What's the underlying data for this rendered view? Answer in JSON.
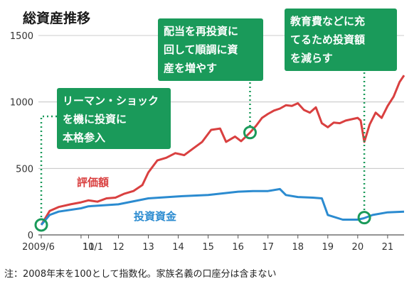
{
  "chart_data": {
    "type": "line",
    "title": "総資産推移",
    "ylim": [
      0,
      1500
    ],
    "y_ticks": [
      0,
      500,
      1000,
      1500
    ],
    "x_ticks": [
      {
        "t": 2009.42,
        "label": "2009/6"
      },
      {
        "t": 2010.75,
        "label": "10/1"
      },
      {
        "t": 2011.0,
        "label": "11"
      },
      {
        "t": 2012.0,
        "label": "12"
      },
      {
        "t": 2013.0,
        "label": "13"
      },
      {
        "t": 2014.0,
        "label": "14"
      },
      {
        "t": 2015.0,
        "label": "15"
      },
      {
        "t": 2016.0,
        "label": "16"
      },
      {
        "t": 2017.0,
        "label": "17"
      },
      {
        "t": 2018.0,
        "label": "18"
      },
      {
        "t": 2019.0,
        "label": "19"
      },
      {
        "t": 2020.0,
        "label": "20"
      },
      {
        "t": 2021.0,
        "label": "21"
      }
    ],
    "grid": true,
    "series": [
      {
        "name": "評価額",
        "color": "#d94040",
        "points": [
          [
            2009.42,
            75
          ],
          [
            2009.7,
            180
          ],
          [
            2010.0,
            210
          ],
          [
            2010.4,
            230
          ],
          [
            2010.75,
            245
          ],
          [
            2011.0,
            260
          ],
          [
            2011.3,
            250
          ],
          [
            2011.6,
            275
          ],
          [
            2011.9,
            280
          ],
          [
            2012.2,
            310
          ],
          [
            2012.5,
            330
          ],
          [
            2012.8,
            375
          ],
          [
            2013.0,
            470
          ],
          [
            2013.3,
            560
          ],
          [
            2013.6,
            580
          ],
          [
            2013.9,
            615
          ],
          [
            2014.2,
            600
          ],
          [
            2014.5,
            650
          ],
          [
            2014.8,
            700
          ],
          [
            2015.1,
            790
          ],
          [
            2015.4,
            800
          ],
          [
            2015.6,
            700
          ],
          [
            2015.9,
            740
          ],
          [
            2016.1,
            705
          ],
          [
            2016.4,
            770
          ],
          [
            2016.6,
            820
          ],
          [
            2016.8,
            880
          ],
          [
            2017.0,
            910
          ],
          [
            2017.2,
            935
          ],
          [
            2017.4,
            950
          ],
          [
            2017.6,
            975
          ],
          [
            2017.8,
            970
          ],
          [
            2018.0,
            990
          ],
          [
            2018.2,
            940
          ],
          [
            2018.4,
            920
          ],
          [
            2018.6,
            960
          ],
          [
            2018.8,
            840
          ],
          [
            2019.0,
            810
          ],
          [
            2019.2,
            845
          ],
          [
            2019.4,
            840
          ],
          [
            2019.6,
            860
          ],
          [
            2019.8,
            870
          ],
          [
            2020.0,
            880
          ],
          [
            2020.1,
            860
          ],
          [
            2020.22,
            700
          ],
          [
            2020.4,
            830
          ],
          [
            2020.6,
            920
          ],
          [
            2020.8,
            880
          ],
          [
            2021.0,
            970
          ],
          [
            2021.2,
            1040
          ],
          [
            2021.4,
            1150
          ],
          [
            2021.55,
            1200
          ]
        ]
      },
      {
        "name": "投資資金",
        "color": "#2b8bd0",
        "points": [
          [
            2009.42,
            75
          ],
          [
            2009.7,
            150
          ],
          [
            2010.0,
            175
          ],
          [
            2010.75,
            200
          ],
          [
            2011.0,
            215
          ],
          [
            2012.0,
            230
          ],
          [
            2013.0,
            275
          ],
          [
            2014.0,
            290
          ],
          [
            2015.0,
            300
          ],
          [
            2016.0,
            325
          ],
          [
            2016.5,
            330
          ],
          [
            2017.0,
            330
          ],
          [
            2017.4,
            345
          ],
          [
            2017.6,
            300
          ],
          [
            2018.0,
            285
          ],
          [
            2018.5,
            280
          ],
          [
            2018.8,
            275
          ],
          [
            2019.0,
            150
          ],
          [
            2019.5,
            115
          ],
          [
            2020.0,
            115
          ],
          [
            2020.2,
            125
          ],
          [
            2020.5,
            150
          ],
          [
            2021.0,
            170
          ],
          [
            2021.55,
            175
          ]
        ]
      }
    ],
    "callouts": [
      {
        "lines": [
          "リーマン・ショック",
          "を機に投資に",
          "本格参入"
        ],
        "t": 2009.42,
        "v": 75
      },
      {
        "lines": [
          "配当を再投資に",
          "回して順調に資",
          "産を増やす"
        ],
        "t": 2016.4,
        "v": 770
      },
      {
        "lines": [
          "教育費などに充",
          "てるため投資額",
          "を減らす"
        ],
        "t": 2020.22,
        "v": 130
      }
    ],
    "note": "注：2008年末を100として指数化。家族名義の口座分は含まない"
  }
}
